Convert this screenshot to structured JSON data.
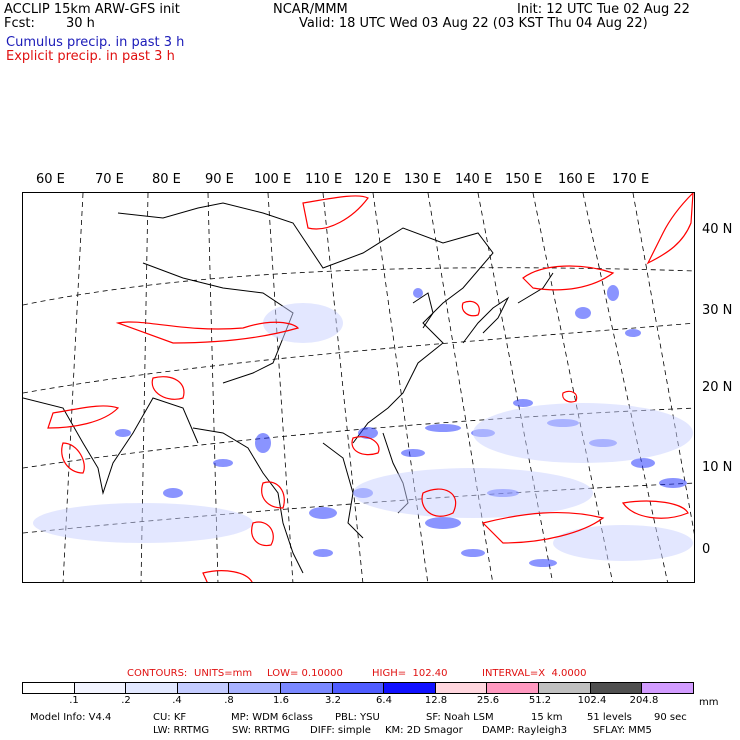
{
  "header": {
    "model": "ACCLIP 15km ARW-GFS init",
    "fcst_label": "Fcst:",
    "fcst_value": "30 h",
    "center": "NCAR/MMM",
    "init": "Init: 12 UTC Tue 02 Aug 22",
    "valid": "Valid: 18 UTC Wed 03 Aug 22 (03 KST Thu 04 Aug 22)",
    "legend_cumulus": "Cumulus precip. in past 3 h",
    "legend_explicit": "Explicit precip. in past 3 h"
  },
  "map": {
    "lon_labels": [
      "60 E",
      "70 E",
      "80 E",
      "90 E",
      "100 E",
      "110 E",
      "120 E",
      "130 E",
      "140 E",
      "150 E",
      "160 E",
      "170 E"
    ],
    "lat_labels": [
      "40 N",
      "30 N",
      "20 N",
      "10 N",
      "0"
    ],
    "colors": {
      "cumulus": "#2020ff",
      "explicit": "#ff0000",
      "coast": "#000000",
      "grid": "#000000"
    }
  },
  "contours": {
    "prefix": "CONTOURS:",
    "units": "UNITS=mm",
    "low": "LOW= 0.10000",
    "high": "HIGH=  102.40",
    "interval": "INTERVAL=X  4.0000"
  },
  "colorbar": {
    "labels": [
      ".1",
      ".2",
      ".4",
      ".8",
      "1.6",
      "3.2",
      "6.4",
      "12.8",
      "25.6",
      "51.2",
      "102.4",
      "204.8"
    ],
    "unit": "mm",
    "colors": [
      "#ffffff",
      "#f2f4ff",
      "#e2e8ff",
      "#c4ccff",
      "#a8b2ff",
      "#7a88ff",
      "#4f5cff",
      "#1010ff",
      "#ffd6de",
      "#ff99c0",
      "#c0c0c0",
      "#505050",
      "#d29cff"
    ]
  },
  "footer": {
    "line1": [
      "Model Info: V4.4",
      "CU: KF",
      "MP: WDM 6class",
      "PBL: YSU",
      "SF: Noah LSM",
      "15 km",
      "51 levels",
      "90 sec"
    ],
    "line2": [
      "LW: RRTMG",
      "SW: RRTMG",
      "DIFF: simple",
      "KM: 2D Smagor",
      "DAMP: Rayleigh3",
      "SFLAY: MM5"
    ]
  }
}
